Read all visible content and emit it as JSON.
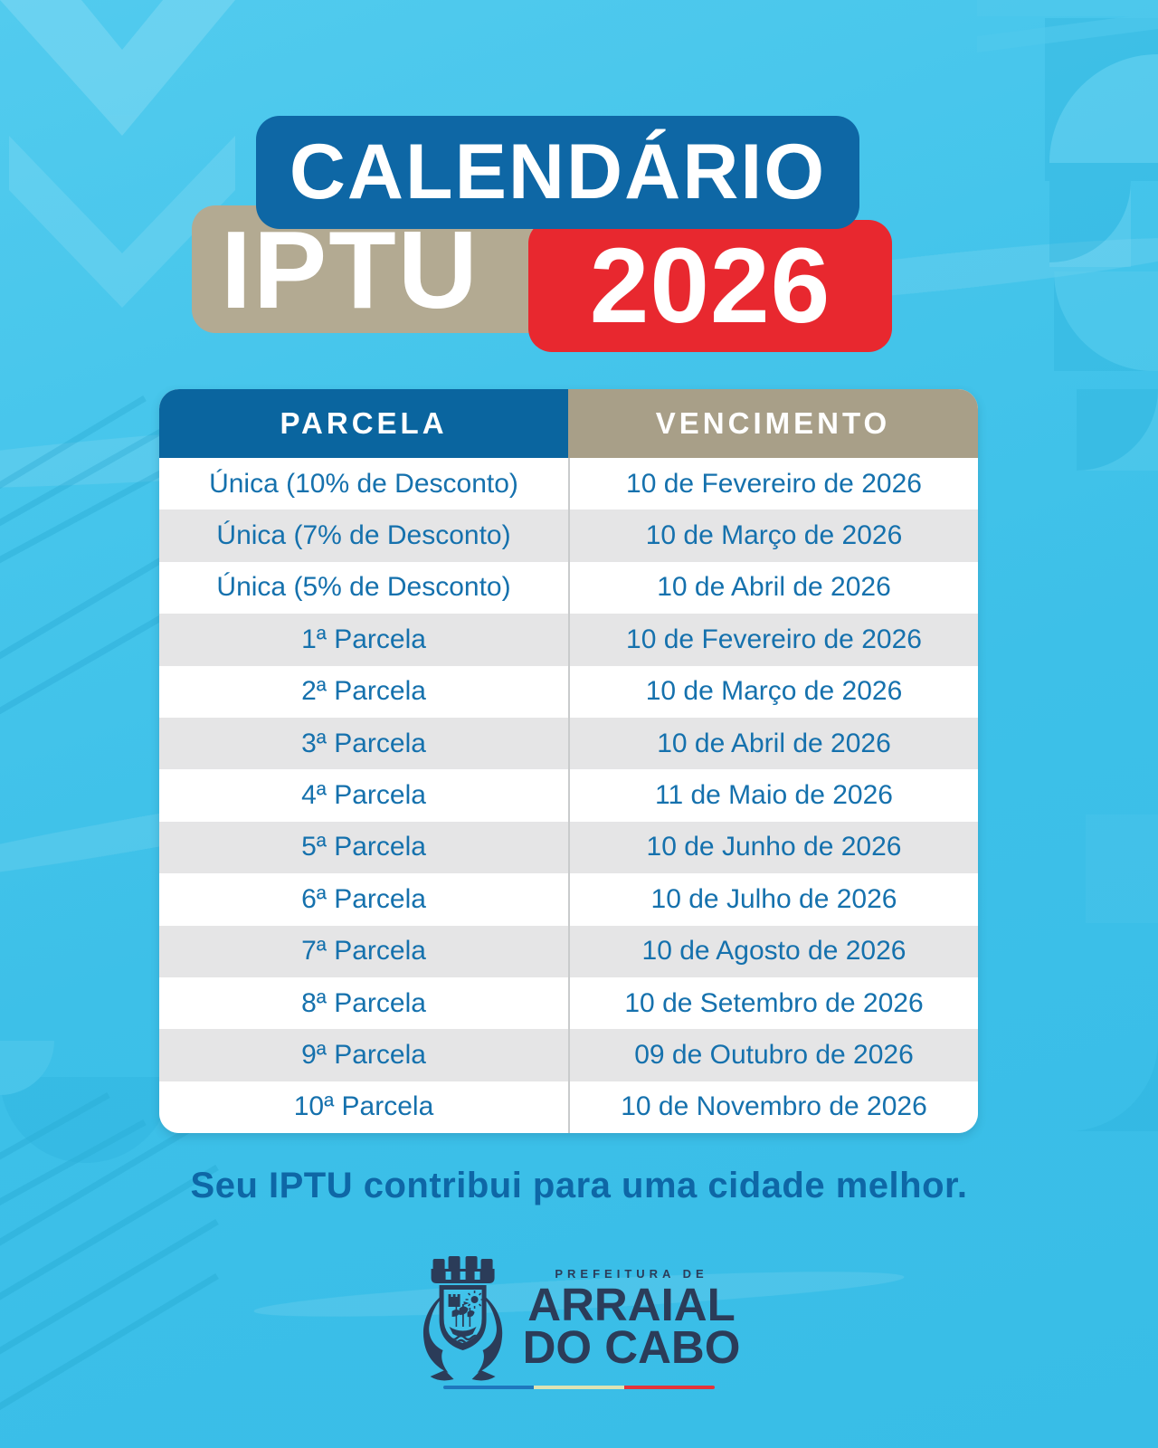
{
  "title": {
    "calendario": "CALENDÁRIO",
    "iptu": "IPTU",
    "year": "2026"
  },
  "table": {
    "columns": [
      "PARCELA",
      "VENCIMENTO"
    ],
    "rows": [
      [
        "Única (10% de Desconto)",
        "10 de Fevereiro de 2026"
      ],
      [
        "Única (7% de Desconto)",
        "10 de Março de 2026"
      ],
      [
        "Única (5% de Desconto)",
        "10 de Abril de 2026"
      ],
      [
        "1ª Parcela",
        "10 de Fevereiro de 2026"
      ],
      [
        "2ª Parcela",
        "10 de Março de 2026"
      ],
      [
        "3ª Parcela",
        "10 de Abril de 2026"
      ],
      [
        "4ª Parcela",
        "11 de Maio de 2026"
      ],
      [
        "5ª Parcela",
        "10 de Junho de 2026"
      ],
      [
        "6ª Parcela",
        "10 de Julho de 2026"
      ],
      [
        "7ª Parcela",
        "10 de Agosto de 2026"
      ],
      [
        "8ª Parcela",
        "10 de Setembro de 2026"
      ],
      [
        "9ª Parcela",
        "09 de Outubro de 2026"
      ],
      [
        "10ª Parcela",
        "10 de Novembro de 2026"
      ]
    ]
  },
  "footer": {
    "slogan": "Seu IPTU contribui para uma cidade melhor."
  },
  "logo": {
    "crest_icon": "city-crest-icon",
    "org_small": "PREFEITURA DE",
    "org_line1": "ARRAIAL",
    "org_line2": "DO CABO"
  },
  "colors": {
    "background_cyan": "#41c3ea",
    "header_blue": "#0a659f",
    "header_tan": "#a89f88",
    "title_red": "#e8282f",
    "row_gray": "#e5e5e6",
    "cell_text_blue": "#1571ad",
    "slogan_blue": "#0e67a6",
    "logo_navy": "#2b3c59",
    "tricolor": [
      "#1e78be",
      "#dde3b4",
      "#e4333a"
    ]
  }
}
